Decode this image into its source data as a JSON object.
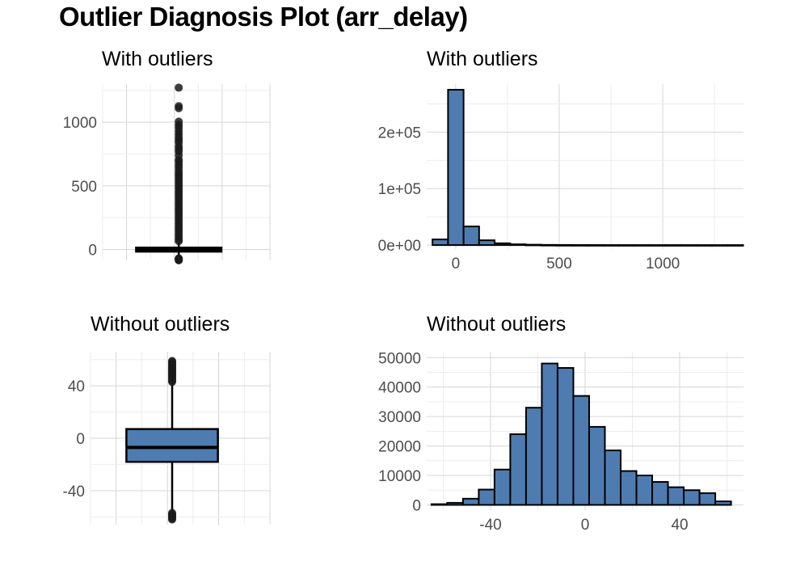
{
  "title": "Outlier Diagnosis Plot (arr_delay)",
  "colors": {
    "fill": "#4e7cb0",
    "stroke": "#000000",
    "point": "#1a1a1a"
  },
  "chart_data": [
    {
      "id": "box_with",
      "type": "boxplot",
      "title": "With outliers",
      "ylim": [
        -86,
        1300
      ],
      "yticks": [
        0,
        500,
        1000
      ],
      "stats": {
        "lower_whisker": -63,
        "q1": -17,
        "median": -5,
        "q3": 14,
        "upper_whisker": 60
      },
      "outliers": [
        1272,
        1127,
        1110,
        1005,
        980,
        957,
        930,
        905,
        880,
        860,
        840,
        810,
        790,
        770,
        740,
        705,
        690,
        665,
        645,
        620,
        600,
        580,
        560,
        540,
        520,
        500,
        480,
        460,
        440,
        420,
        400,
        380,
        360,
        340,
        320,
        300,
        280,
        260,
        240,
        220,
        200,
        180,
        160,
        140,
        120,
        100,
        80,
        65,
        -70,
        -75,
        -79,
        -82,
        -86
      ],
      "grid": true
    },
    {
      "id": "hist_with",
      "type": "histogram",
      "title": "With outliers",
      "xlim": [
        -140,
        1390
      ],
      "ylim": [
        -7000,
        285000
      ],
      "xticks": [
        0,
        500,
        1000
      ],
      "yticks": [
        0,
        100000,
        200000
      ],
      "ytick_labels": [
        "0e+00",
        "1e+05",
        "2e+05"
      ],
      "bin_width": 75,
      "bins_start": -112,
      "counts": [
        10000,
        275000,
        33000,
        8500,
        3200,
        1400,
        700,
        350,
        200,
        130,
        90,
        60,
        45,
        35,
        25,
        20,
        15,
        12,
        10,
        8
      ],
      "grid": true
    },
    {
      "id": "box_without",
      "type": "boxplot",
      "title": "Without outliers",
      "ylim": [
        -66,
        66
      ],
      "yticks": [
        -40,
        0,
        40
      ],
      "stats": {
        "lower_whisker": -56,
        "q1": -18,
        "median": -7,
        "q3": 7,
        "upper_whisker": 42
      },
      "outliers": [
        43,
        44,
        45,
        46,
        47,
        48,
        49,
        50,
        51,
        52,
        53,
        54,
        55,
        56,
        57,
        58,
        59,
        -57,
        -58,
        -59,
        -60,
        -61,
        -62
      ],
      "grid": true
    },
    {
      "id": "hist_without",
      "type": "histogram",
      "title": "Without outliers",
      "xlim": [
        -67,
        67
      ],
      "ylim": [
        -1800,
        52000
      ],
      "xticks": [
        -40,
        0,
        40
      ],
      "yticks": [
        0,
        10000,
        20000,
        30000,
        40000,
        50000
      ],
      "ytick_labels": [
        "0",
        "10000",
        "20000",
        "30000",
        "40000",
        "50000"
      ],
      "bin_width": 6.67,
      "bins_start": -65,
      "counts": [
        250,
        700,
        2100,
        5200,
        12000,
        24000,
        33000,
        48000,
        46500,
        37000,
        26500,
        18500,
        11500,
        10000,
        7800,
        6000,
        5000,
        4000,
        1200
      ],
      "grid": true
    }
  ]
}
